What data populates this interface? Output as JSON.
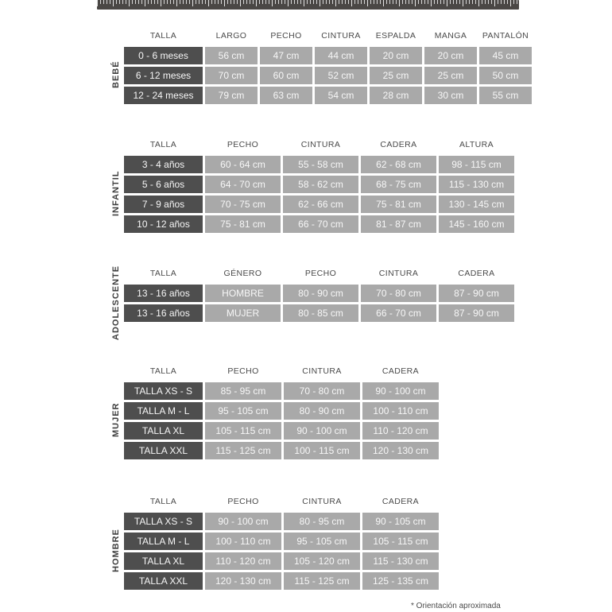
{
  "page": {
    "footnote": "* Orientación aproximada"
  },
  "colors": {
    "dark_cell": "#4e4e4e",
    "light_cell": "#a9a9a9",
    "header_text": "#4a4a4a",
    "ruler": "#4a4745"
  },
  "ruler": {
    "icon": "measuring-tape-icon"
  },
  "tables": [
    {
      "id": "bebe",
      "label": "BEBÉ",
      "headers": [
        "TALLA",
        "LARGO",
        "PECHO",
        "CINTURA",
        "ESPALDA",
        "MANGA",
        "PANTALÓN"
      ],
      "rows": [
        [
          "0 - 6 meses",
          "56 cm",
          "47 cm",
          "44 cm",
          "20 cm",
          "20 cm",
          "45 cm"
        ],
        [
          "6 - 12 meses",
          "70 cm",
          "60 cm",
          "52 cm",
          "25 cm",
          "25 cm",
          "50 cm"
        ],
        [
          "12 - 24 meses",
          "79 cm",
          "63 cm",
          "54 cm",
          "28 cm",
          "30 cm",
          "55 cm"
        ]
      ]
    },
    {
      "id": "infantil",
      "label": "INFANTIL",
      "headers": [
        "TALLA",
        "PECHO",
        "CINTURA",
        "CADERA",
        "ALTURA"
      ],
      "rows": [
        [
          "3 - 4 años",
          "60 - 64 cm",
          "55 - 58 cm",
          "62 - 68 cm",
          "98 - 115 cm"
        ],
        [
          "5 - 6 años",
          "64 - 70 cm",
          "58 - 62 cm",
          "68 - 75 cm",
          "115 - 130 cm"
        ],
        [
          "7 - 9 años",
          "70 - 75 cm",
          "62 - 66 cm",
          "75 - 81 cm",
          "130 - 145 cm"
        ],
        [
          "10 - 12 años",
          "75 - 81 cm",
          "66 - 70 cm",
          "81 - 87 cm",
          "145 - 160 cm"
        ]
      ]
    },
    {
      "id": "adolescente",
      "label": "ADOLESCENTE",
      "headers": [
        "TALLA",
        "GÉNERO",
        "PECHO",
        "CINTURA",
        "CADERA"
      ],
      "rows": [
        [
          "13 - 16 años",
          "HOMBRE",
          "80 - 90 cm",
          "70 - 80 cm",
          "87 - 90 cm"
        ],
        [
          "13 - 16 años",
          "MUJER",
          "80 - 85 cm",
          "66 - 70 cm",
          "87 - 90 cm"
        ]
      ]
    },
    {
      "id": "mujer",
      "label": "MUJER",
      "headers": [
        "TALLA",
        "PECHO",
        "CINTURA",
        "CADERA"
      ],
      "rows": [
        [
          "TALLA XS - S",
          "85 - 95 cm",
          "70 - 80 cm",
          "90 - 100 cm"
        ],
        [
          "TALLA M - L",
          "95 - 105 cm",
          "80 - 90 cm",
          "100 - 110 cm"
        ],
        [
          "TALLA XL",
          "105 - 115 cm",
          "90 - 100 cm",
          "110 - 120 cm"
        ],
        [
          "TALLA XXL",
          "115 - 125 cm",
          "100 - 115 cm",
          "120 - 130 cm"
        ]
      ]
    },
    {
      "id": "hombre",
      "label": "HOMBRE",
      "headers": [
        "TALLA",
        "PECHO",
        "CINTURA",
        "CADERA"
      ],
      "rows": [
        [
          "TALLA XS - S",
          "90 - 100 cm",
          "80 - 95 cm",
          "90 - 105 cm"
        ],
        [
          "TALLA M - L",
          "100 - 110 cm",
          "95 - 105 cm",
          "105 - 115 cm"
        ],
        [
          "TALLA XL",
          "110 - 120 cm",
          "105 - 120 cm",
          "115 - 130 cm"
        ],
        [
          "TALLA XXL",
          "120 - 130 cm",
          "115 - 125 cm",
          "125 - 135 cm"
        ]
      ]
    }
  ]
}
